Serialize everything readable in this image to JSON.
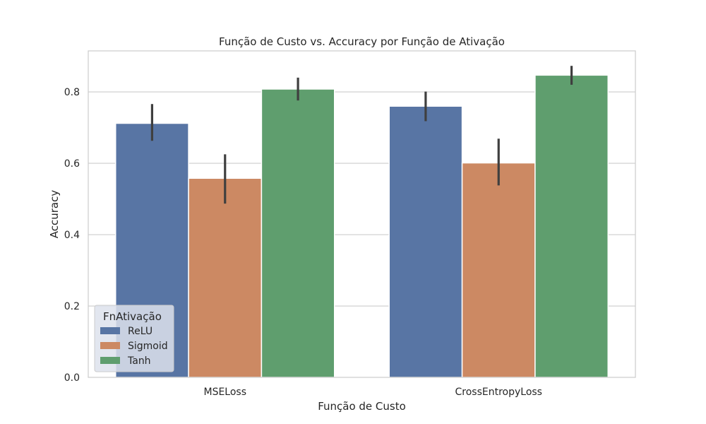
{
  "chart_data": {
    "type": "bar",
    "title": "Função de Custo vs. Accuracy por Função de Ativação",
    "xlabel": "Função de Custo",
    "ylabel": "Accuracy",
    "ylim": [
      0,
      0.915
    ],
    "yticks": [
      0.0,
      0.2,
      0.4,
      0.6,
      0.8
    ],
    "ytick_labels": [
      "0.0",
      "0.2",
      "0.4",
      "0.6",
      "0.8"
    ],
    "grid": true,
    "categories": [
      "MSELoss",
      "CrossEntropyLoss"
    ],
    "legend": {
      "title": "FnAtivação",
      "placement": "lower-left"
    },
    "series": [
      {
        "name": "ReLU",
        "color": "#5875a4",
        "values": [
          0.712,
          0.76
        ],
        "err_low": [
          0.663,
          0.718
        ],
        "err_high": [
          0.766,
          0.801
        ]
      },
      {
        "name": "Sigmoid",
        "color": "#cc8963",
        "values": [
          0.558,
          0.601
        ],
        "err_low": [
          0.487,
          0.538
        ],
        "err_high": [
          0.625,
          0.669
        ]
      },
      {
        "name": "Tanh",
        "color": "#5f9e6e",
        "values": [
          0.808,
          0.847
        ],
        "err_low": [
          0.776,
          0.82
        ],
        "err_high": [
          0.84,
          0.873
        ]
      }
    ]
  }
}
